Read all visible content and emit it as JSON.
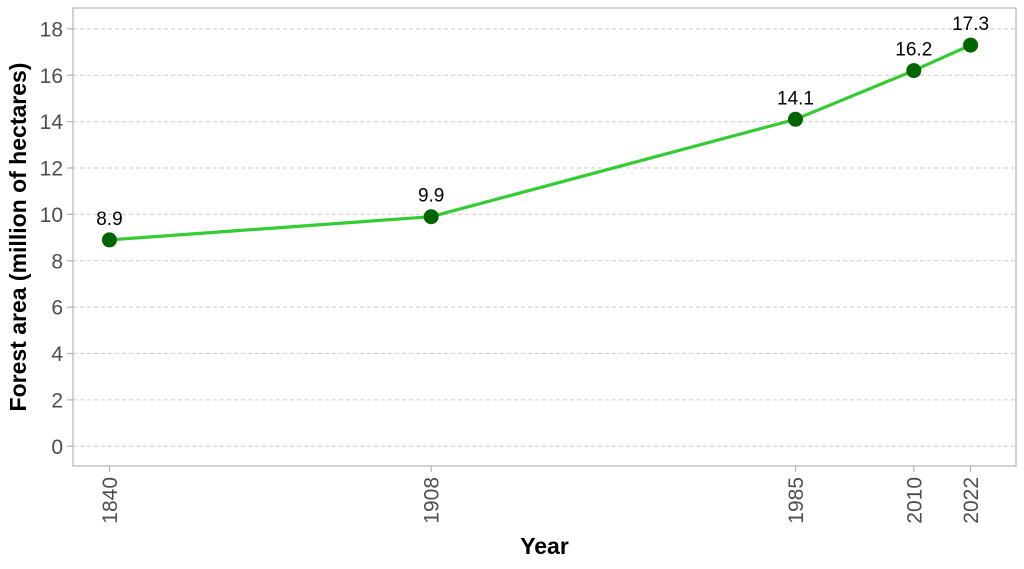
{
  "chart_data": {
    "type": "line",
    "title": "",
    "xlabel": "Year",
    "ylabel": "Forest area (million of hectares)",
    "x": [
      1840,
      1908,
      1985,
      2010,
      2022
    ],
    "x_tick_labels": [
      "1840",
      "1908",
      "1985",
      "2010",
      "2022"
    ],
    "values": [
      8.9,
      9.9,
      14.1,
      16.2,
      17.3
    ],
    "data_labels": [
      "8.9",
      "9.9",
      "14.1",
      "16.2",
      "17.3"
    ],
    "y_ticks": [
      0,
      2,
      4,
      6,
      8,
      10,
      12,
      14,
      16,
      18
    ],
    "y_tick_labels": [
      "0",
      "2",
      "4",
      "6",
      "8",
      "10",
      "12",
      "14",
      "16",
      "18"
    ],
    "xlim": [
      1832.3,
      2031.6
    ],
    "ylim": [
      -0.85,
      18.9
    ],
    "grid": "horizontal dashed",
    "colors": {
      "line": "#33cc33",
      "marker": "#006400",
      "grid": "#cccccc",
      "frame": "#b3b3b3",
      "tick_text": "#4d4d4d"
    }
  }
}
